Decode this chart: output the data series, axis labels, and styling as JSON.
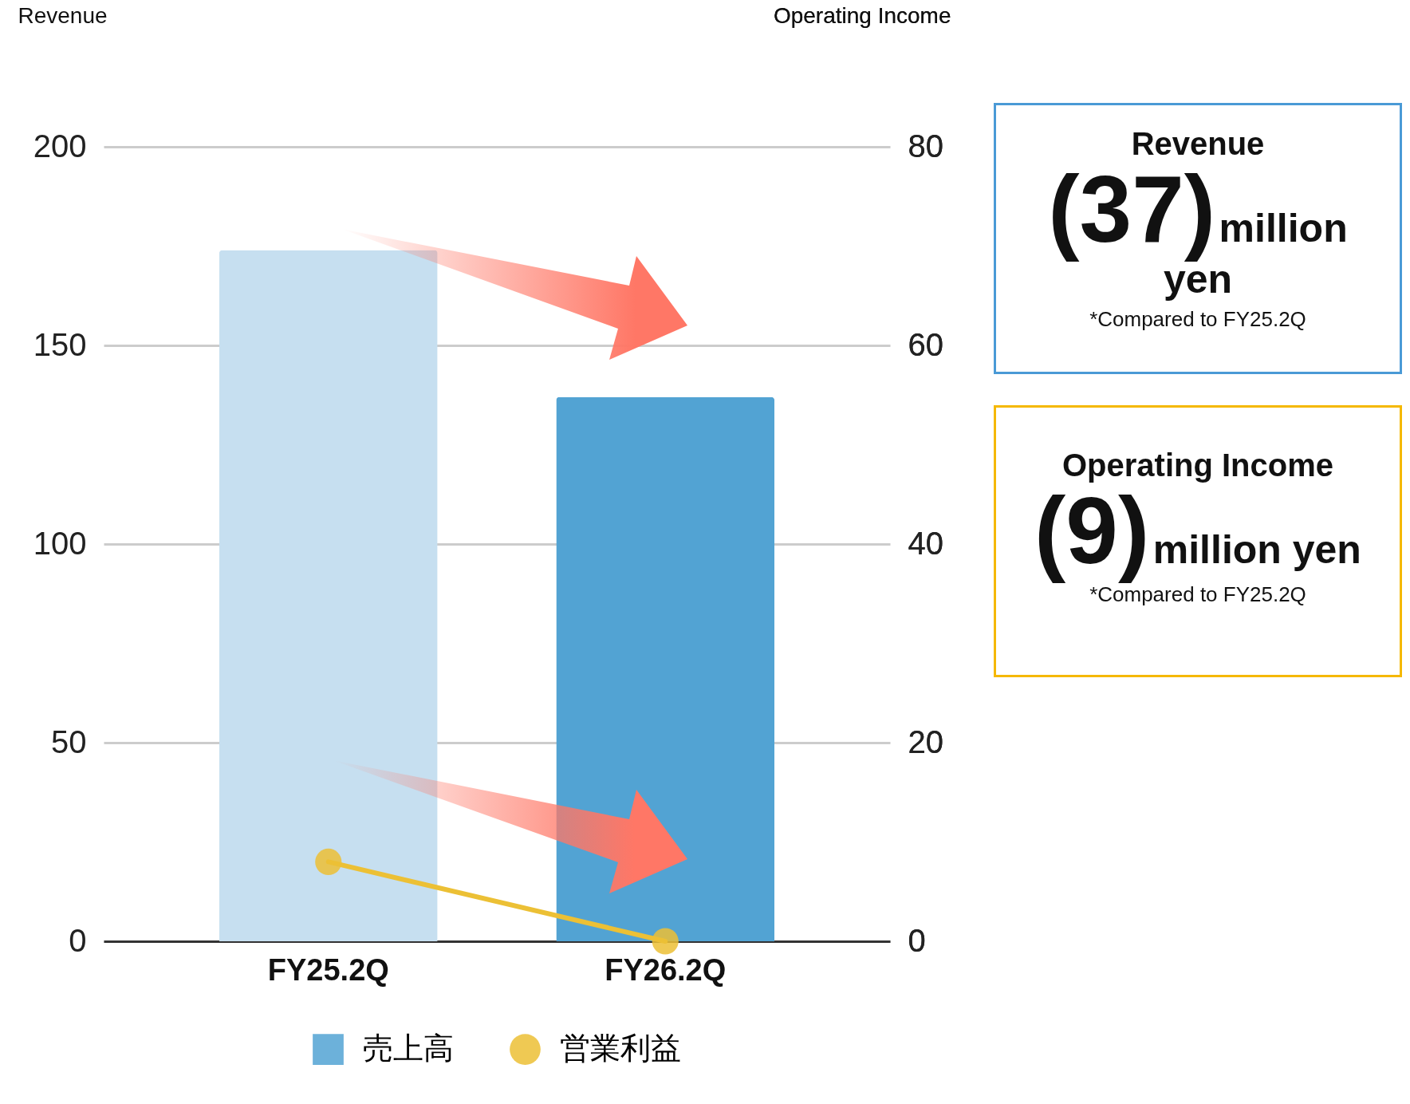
{
  "chart_data": [
    {
      "type": "bar",
      "categories": [
        "FY25.2Q",
        "FY26.2Q"
      ],
      "ylabel": "Revenue",
      "y2label": "Operating Income",
      "ylim": [
        0,
        200
      ],
      "yticks": [
        0,
        50,
        100,
        150,
        200
      ],
      "y2lim": [
        0,
        80
      ],
      "y2ticks": [
        0,
        20,
        40,
        60,
        80
      ],
      "grid": "y",
      "legend": "bottom",
      "series": [
        {
          "name": "売上高",
          "type": "bar",
          "color": "#52a3d3",
          "colors": [
            "#c6dff0",
            "#52a3d3"
          ],
          "values": [
            174,
            137
          ]
        },
        {
          "name": "営業利益",
          "type": "line",
          "axis": "y2",
          "color": "#ecc035",
          "marker": "circle",
          "values": [
            8,
            0
          ]
        }
      ]
    },
    {
      "type": "other",
      "title": "Revenue",
      "annotations": [
        "(37)",
        "million yen",
        "*Compared to FY25.2Q"
      ]
    },
    {
      "type": "other",
      "title": "Operating Income",
      "annotations": [
        "(9)",
        "million yen",
        "*Compared to FY25.2Q"
      ]
    }
  ]
}
